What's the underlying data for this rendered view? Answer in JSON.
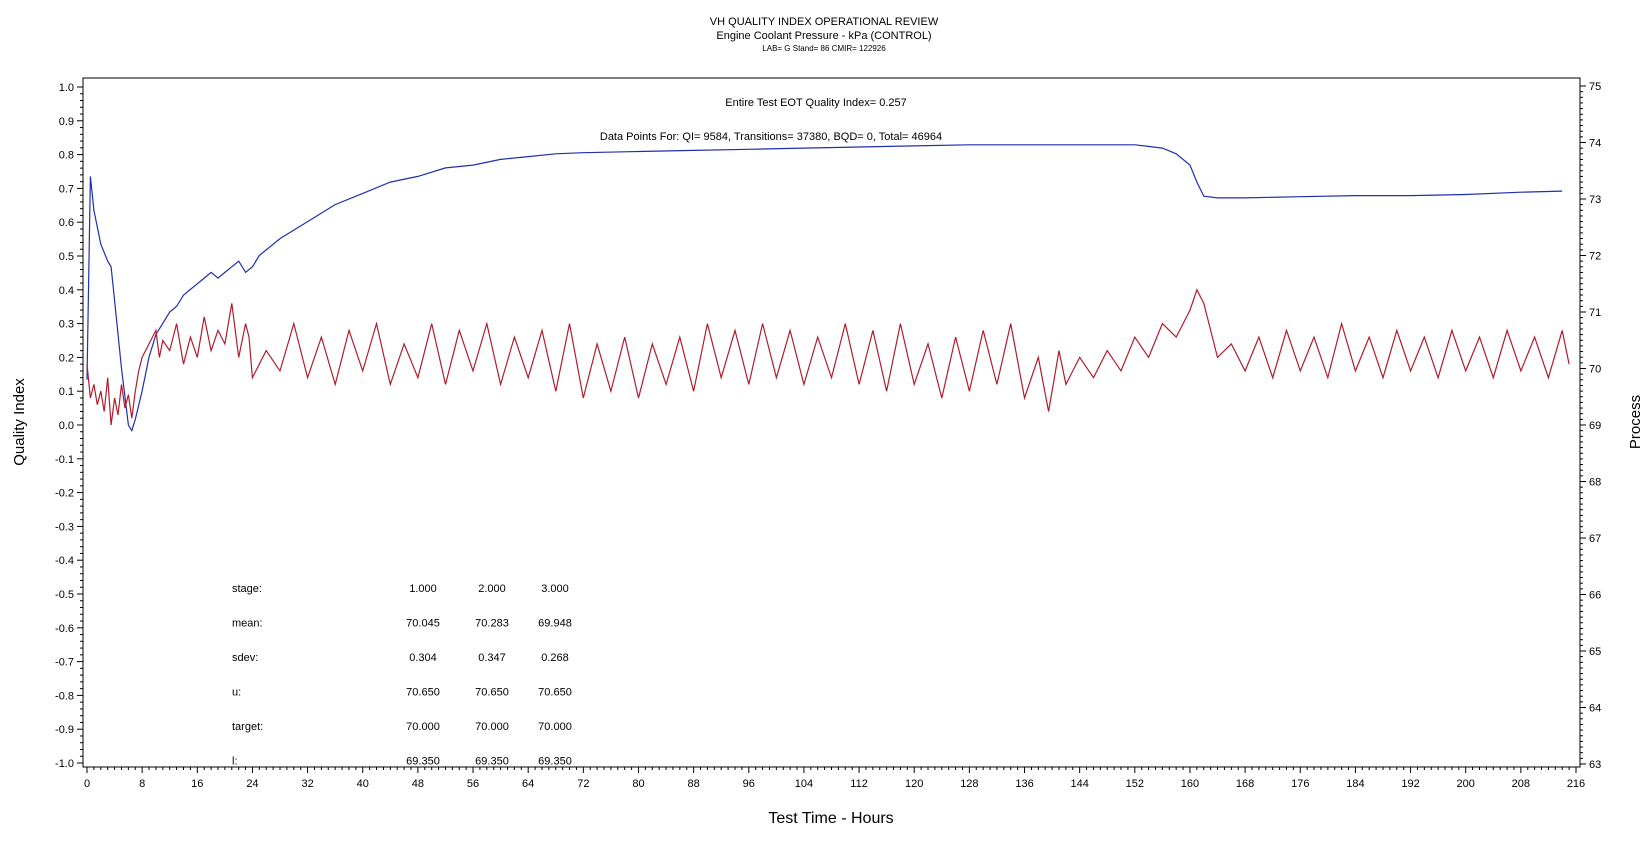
{
  "colors": {
    "quality_index": "#b01c2e",
    "process": "#1f2fb0"
  },
  "chart_data": {
    "type": "line",
    "title": "VH QUALITY INDEX OPERATIONAL REVIEW",
    "subtitle": "Engine Coolant Pressure - kPa (CONTROL)",
    "subtitle2": "LAB= G Stand= 86 CMIR= 122926",
    "xlabel": "Test Time - Hours",
    "ylabel_left": "Quality Index",
    "ylabel_right": "Process",
    "xlim": [
      0,
      216
    ],
    "ylim_left": [
      -1.0,
      1.0
    ],
    "ylim_right": [
      63,
      75
    ],
    "x_ticks": [
      "0",
      "8",
      "16",
      "24",
      "32",
      "40",
      "48",
      "56",
      "64",
      "72",
      "80",
      "88",
      "96",
      "104",
      "112",
      "120",
      "128",
      "136",
      "144",
      "152",
      "160",
      "168",
      "176",
      "184",
      "192",
      "200",
      "208",
      "216"
    ],
    "y_left_ticks": [
      "1.0",
      "0.9",
      "0.8",
      "0.7",
      "0.6",
      "0.5",
      "0.4",
      "0.3",
      "0.2",
      "0.1",
      "0.0",
      "-0.1",
      "-0.2",
      "-0.3",
      "-0.4",
      "-0.5",
      "-0.6",
      "-0.7",
      "-0.8",
      "-0.9",
      "-1.0"
    ],
    "y_right_ticks": [
      "75",
      "74",
      "73",
      "72",
      "71",
      "70",
      "69",
      "68",
      "67",
      "66",
      "65",
      "64",
      "63"
    ],
    "annotation_qi": "Entire Test EOT Quality Index=   0.257",
    "annotation_points": "Data Points For: QI=  9584, Transitions= 37380, BQD=     0, Total= 46964",
    "stats_table": {
      "rows": [
        {
          "label": "stage:",
          "values": [
            "1.000",
            "2.000",
            "3.000"
          ]
        },
        {
          "label": "mean:",
          "values": [
            "70.045",
            "70.283",
            "69.948"
          ]
        },
        {
          "label": "sdev:",
          "values": [
            "0.304",
            "0.347",
            "0.268"
          ]
        },
        {
          "label": "u:",
          "values": [
            "70.650",
            "70.650",
            "70.650"
          ]
        },
        {
          "label": "target:",
          "values": [
            "70.000",
            "70.000",
            "70.000"
          ]
        },
        {
          "label": "l:",
          "values": [
            "69.350",
            "69.350",
            "69.350"
          ]
        }
      ]
    },
    "series": [
      {
        "axis": "right",
        "x": [
          0,
          0.5,
          1,
          2,
          3,
          3.5,
          4,
          5,
          6,
          6.5,
          7,
          8,
          9,
          10,
          11,
          12,
          13,
          14,
          15,
          16,
          17,
          18,
          19,
          20,
          21,
          22,
          23,
          24,
          25,
          28,
          32,
          36,
          40,
          44,
          48,
          52,
          56,
          60,
          64,
          68,
          72,
          80,
          88,
          96,
          104,
          112,
          120,
          128,
          136,
          144,
          152,
          156,
          158,
          160,
          161,
          162,
          164,
          168,
          176,
          184,
          192,
          200,
          208,
          214
        ],
        "y": [
          69.8,
          73.4,
          72.8,
          72.2,
          71.9,
          71.8,
          71.2,
          70.0,
          69.0,
          68.9,
          69.1,
          69.6,
          70.2,
          70.6,
          70.8,
          71.0,
          71.1,
          71.3,
          71.4,
          71.5,
          71.6,
          71.7,
          71.6,
          71.7,
          71.8,
          71.9,
          71.7,
          71.8,
          72.0,
          72.3,
          72.6,
          72.9,
          73.1,
          73.3,
          73.4,
          73.55,
          73.6,
          73.7,
          73.75,
          73.8,
          73.82,
          73.84,
          73.86,
          73.88,
          73.9,
          73.92,
          73.94,
          73.96,
          73.96,
          73.96,
          73.96,
          73.9,
          73.8,
          73.6,
          73.3,
          73.05,
          73.02,
          73.02,
          73.04,
          73.06,
          73.06,
          73.08,
          73.12,
          73.14
        ]
      },
      {
        "axis": "left",
        "x": [
          0,
          0.5,
          1,
          1.5,
          2,
          2.5,
          3,
          3.5,
          4,
          4.5,
          5,
          5.5,
          6,
          6.5,
          7,
          7.5,
          8,
          9,
          10,
          10.5,
          11,
          12,
          13,
          14,
          15,
          16,
          17,
          18,
          19,
          20,
          21,
          22,
          23,
          23.5,
          24,
          26,
          28,
          30,
          32,
          34,
          36,
          38,
          40,
          42,
          44,
          46,
          48,
          50,
          52,
          54,
          56,
          58,
          60,
          62,
          64,
          66,
          68,
          70,
          72,
          74,
          76,
          78,
          80,
          82,
          84,
          86,
          88,
          90,
          92,
          94,
          96,
          98,
          100,
          102,
          104,
          106,
          108,
          110,
          112,
          114,
          116,
          118,
          120,
          122,
          124,
          126,
          128,
          130,
          132,
          134,
          136,
          138,
          139.5,
          141,
          142,
          144,
          146,
          148,
          150,
          152,
          154,
          156,
          158,
          160,
          161,
          162,
          164,
          166,
          168,
          170,
          172,
          174,
          176,
          178,
          180,
          182,
          184,
          186,
          188,
          190,
          192,
          194,
          196,
          198,
          200,
          202,
          204,
          206,
          208,
          210,
          212,
          214,
          215
        ],
        "y": [
          0.18,
          0.08,
          0.12,
          0.06,
          0.1,
          0.04,
          0.14,
          0.0,
          0.08,
          0.03,
          0.12,
          0.05,
          0.09,
          0.02,
          0.1,
          0.16,
          0.2,
          0.24,
          0.28,
          0.2,
          0.25,
          0.22,
          0.3,
          0.18,
          0.26,
          0.2,
          0.32,
          0.22,
          0.28,
          0.24,
          0.36,
          0.2,
          0.3,
          0.26,
          0.14,
          0.22,
          0.16,
          0.3,
          0.14,
          0.26,
          0.12,
          0.28,
          0.16,
          0.3,
          0.12,
          0.24,
          0.14,
          0.3,
          0.12,
          0.28,
          0.16,
          0.3,
          0.12,
          0.26,
          0.14,
          0.28,
          0.1,
          0.3,
          0.08,
          0.24,
          0.1,
          0.26,
          0.08,
          0.24,
          0.12,
          0.26,
          0.1,
          0.3,
          0.14,
          0.28,
          0.12,
          0.3,
          0.14,
          0.28,
          0.12,
          0.26,
          0.14,
          0.3,
          0.12,
          0.28,
          0.1,
          0.3,
          0.12,
          0.24,
          0.08,
          0.26,
          0.1,
          0.28,
          0.12,
          0.3,
          0.08,
          0.2,
          0.04,
          0.22,
          0.12,
          0.2,
          0.14,
          0.22,
          0.16,
          0.26,
          0.2,
          0.3,
          0.26,
          0.34,
          0.4,
          0.36,
          0.2,
          0.24,
          0.16,
          0.26,
          0.14,
          0.28,
          0.16,
          0.26,
          0.14,
          0.3,
          0.16,
          0.26,
          0.14,
          0.28,
          0.16,
          0.26,
          0.14,
          0.28,
          0.16,
          0.26,
          0.14,
          0.28,
          0.16,
          0.26,
          0.14,
          0.28,
          0.18
        ]
      }
    ]
  }
}
